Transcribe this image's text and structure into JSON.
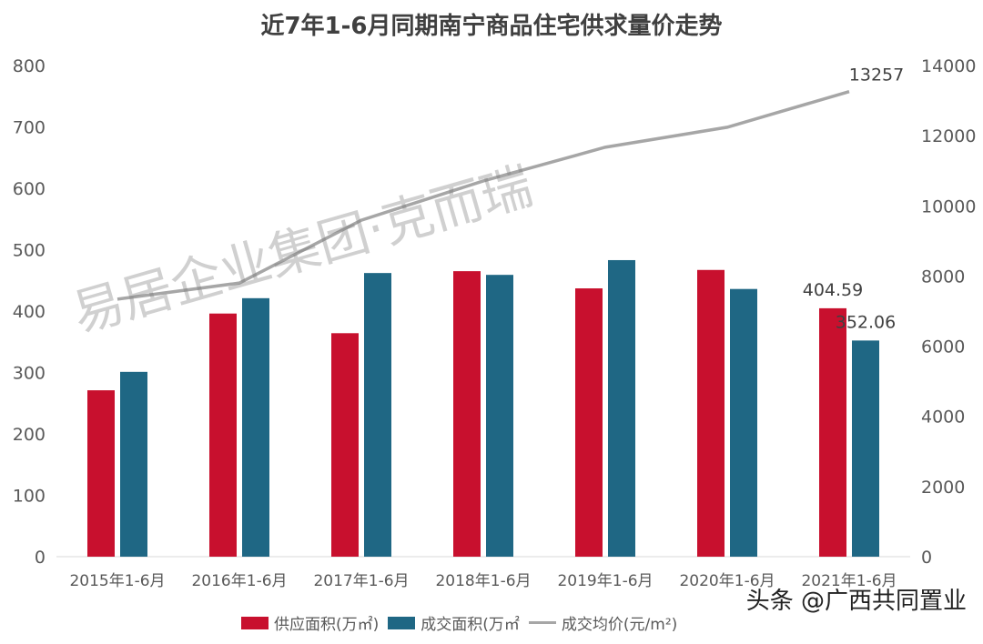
{
  "chart_data": {
    "type": "bar",
    "title": "近7年1-6月同期南宁商品住宅供求量价走势",
    "categories": [
      "2015年1-6月",
      "2016年1-6月",
      "2017年1-6月",
      "2018年1-6月",
      "2019年1-6月",
      "2020年1-6月",
      "2021年1-6月"
    ],
    "series": [
      {
        "name": "供应面积(万㎡)",
        "type": "bar",
        "axis": "left",
        "color": "#c8102e",
        "values": [
          271,
          396,
          364,
          465,
          437,
          467,
          404.59
        ]
      },
      {
        "name": "成交面积(万㎡",
        "type": "bar",
        "axis": "left",
        "color": "#1f6784",
        "values": [
          301,
          421,
          462,
          459,
          483,
          436,
          352.06
        ]
      },
      {
        "name": "成交均价(元/m²)",
        "type": "line",
        "axis": "right",
        "color": "#a6a6a6",
        "values": [
          7340,
          7800,
          9590,
          10710,
          11670,
          12240,
          13257
        ]
      }
    ],
    "data_labels": [
      {
        "series": 0,
        "index": 6,
        "text": "404.59"
      },
      {
        "series": 1,
        "index": 6,
        "text": "352.06"
      },
      {
        "series": 2,
        "index": 6,
        "text": "13257"
      }
    ],
    "ylim_left": [
      0,
      800
    ],
    "yticks_left": [
      "0",
      "100",
      "200",
      "300",
      "400",
      "500",
      "600",
      "700",
      "800"
    ],
    "ylim_right": [
      0,
      14000
    ],
    "yticks_right": [
      "0",
      "2000",
      "4000",
      "6000",
      "8000",
      "10000",
      "12000",
      "14000"
    ],
    "grid": false,
    "legend": "bottom"
  },
  "watermarks": {
    "main": "易居企业集团·克而瑞",
    "corner": "头条 @广西共同置业"
  }
}
